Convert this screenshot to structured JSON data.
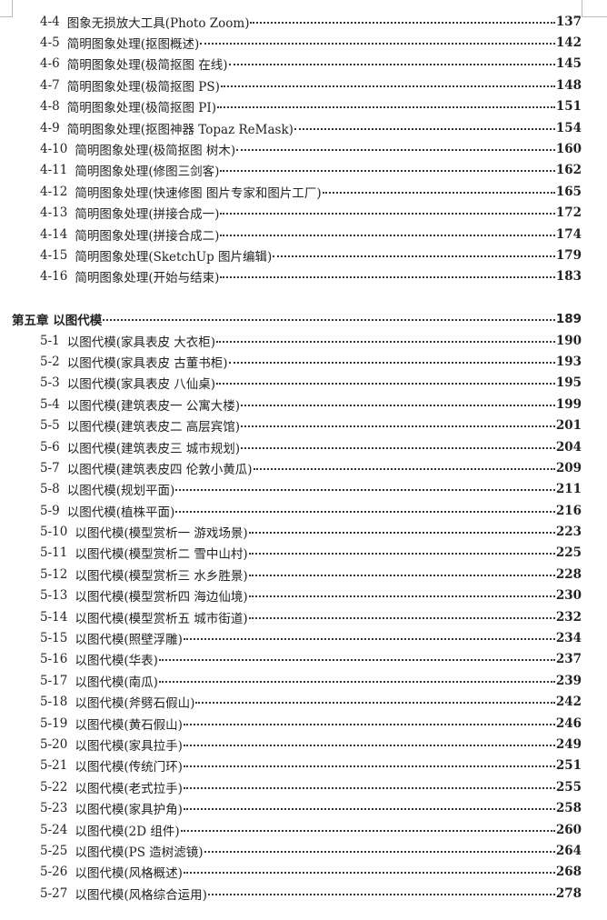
{
  "sections": [
    {
      "chapter": null,
      "entries": [
        {
          "num": "4-4",
          "title": "图象无损放大工具(Photo Zoom)",
          "page": "137"
        },
        {
          "num": "4-5",
          "title": "简明图象处理(抠图概述)",
          "page": "142"
        },
        {
          "num": "4-6",
          "title": "简明图象处理(极简抠图  在线)",
          "page": "145"
        },
        {
          "num": "4-7",
          "title": "简明图象处理(极简抠图  PS)",
          "page": "148"
        },
        {
          "num": "4-8",
          "title": "简明图象处理(极简抠图  PI)",
          "page": "151"
        },
        {
          "num": "4-9",
          "title": "简明图象处理(抠图神器  Topaz ReMask)",
          "page": "154"
        },
        {
          "num": "4-10",
          "title": "简明图象处理(极简抠图  树木)",
          "page": "160"
        },
        {
          "num": "4-11",
          "title": "简明图象处理(修图三剑客)",
          "page": "162"
        },
        {
          "num": "4-12",
          "title": "简明图象处理(快速修图  图片专家和图片工厂)",
          "page": "165"
        },
        {
          "num": "4-13",
          "title": "简明图象处理(拼接合成一)",
          "page": "172"
        },
        {
          "num": "4-14",
          "title": "简明图象处理(拼接合成二)",
          "page": "174"
        },
        {
          "num": "4-15",
          "title": "简明图象处理(SketchUp 图片编辑)",
          "page": "179"
        },
        {
          "num": "4-16",
          "title": "简明图象处理(开始与结束)",
          "page": "183"
        }
      ]
    },
    {
      "chapter": {
        "title": "第五章  以图代模",
        "page": "189"
      },
      "entries": [
        {
          "num": "5-1",
          "title": "以图代模(家具表皮  大衣柜)",
          "page": "190"
        },
        {
          "num": "5-2",
          "title": "以图代模(家具表皮  古董书柜)",
          "page": "193"
        },
        {
          "num": "5-3",
          "title": "以图代模(家具表皮  八仙桌)",
          "page": "195"
        },
        {
          "num": "5-4",
          "title": "以图代模(建筑表皮一  公寓大楼)",
          "page": "199"
        },
        {
          "num": "5-5",
          "title": "以图代模(建筑表皮二  高层宾馆)",
          "page": "201"
        },
        {
          "num": "5-6",
          "title": "以图代模(建筑表皮三  城市规划)",
          "page": "204"
        },
        {
          "num": "5-7",
          "title": "以图代模(建筑表皮四  伦敦小黄瓜)",
          "page": "209"
        },
        {
          "num": "5-8",
          "title": "以图代模(规划平面)",
          "page": "211"
        },
        {
          "num": "5-9",
          "title": "以图代模(植株平面)",
          "page": "216"
        },
        {
          "num": "5-10",
          "title": "以图代模(模型赏析一  游戏场景)",
          "page": "223"
        },
        {
          "num": "5-11",
          "title": "以图代模(模型赏析二  雪中山村)",
          "page": "225"
        },
        {
          "num": "5-12",
          "title": "以图代模(模型赏析三  水乡胜景)",
          "page": "228"
        },
        {
          "num": "5-13",
          "title": "以图代模(模型赏析四  海边仙境)",
          "page": "230"
        },
        {
          "num": "5-14",
          "title": "以图代模(模型赏析五  城市街道)",
          "page": "232"
        },
        {
          "num": "5-15",
          "title": "以图代模(照壁浮雕)",
          "page": "234"
        },
        {
          "num": "5-16",
          "title": "以图代模(华表)",
          "page": "237"
        },
        {
          "num": "5-17",
          "title": "以图代模(南瓜)",
          "page": "239"
        },
        {
          "num": "5-18",
          "title": "以图代模(斧劈石假山)",
          "page": "242"
        },
        {
          "num": "5-19",
          "title": "以图代模(黄石假山)",
          "page": "246"
        },
        {
          "num": "5-20",
          "title": "以图代模(家具拉手)",
          "page": "249"
        },
        {
          "num": "5-21",
          "title": "以图代模(传统门环)",
          "page": "251"
        },
        {
          "num": "5-22",
          "title": "以图代模(老式拉手)",
          "page": "255"
        },
        {
          "num": "5-23",
          "title": "以图代模(家具护角)",
          "page": "258"
        },
        {
          "num": "5-24",
          "title": "以图代模(2D 组件)",
          "page": "260"
        },
        {
          "num": "5-25",
          "title": "以图代模(PS 造树滤镜)",
          "page": "264"
        },
        {
          "num": "5-26",
          "title": "以图代模(风格概述)",
          "page": "268"
        },
        {
          "num": "5-27",
          "title": "以图代模(风格综合运用)",
          "page": "278"
        }
      ]
    }
  ]
}
